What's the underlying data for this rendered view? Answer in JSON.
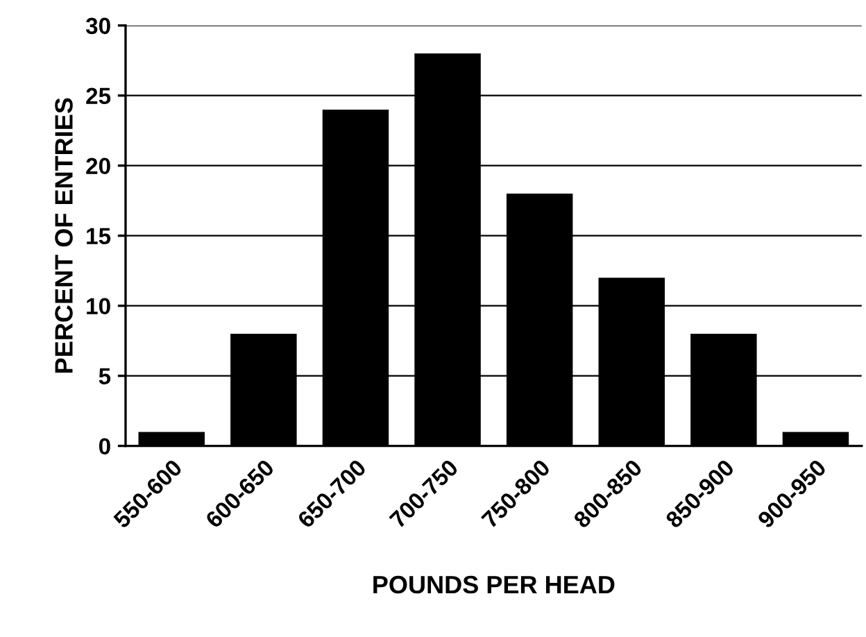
{
  "chart_data": {
    "type": "bar",
    "xlabel": "POUNDS PER HEAD",
    "ylabel": "PERCENT OF ENTRIES",
    "categories": [
      "550-600",
      "600-650",
      "650-700",
      "700-750",
      "750-800",
      "800-850",
      "850-900",
      "900-950"
    ],
    "values": [
      1,
      8,
      24,
      28,
      18,
      12,
      8,
      1
    ],
    "color": "#000000",
    "ylim": [
      0,
      30
    ],
    "yticks": [
      0,
      5,
      10,
      15,
      20,
      25,
      30
    ],
    "grid": "y"
  }
}
